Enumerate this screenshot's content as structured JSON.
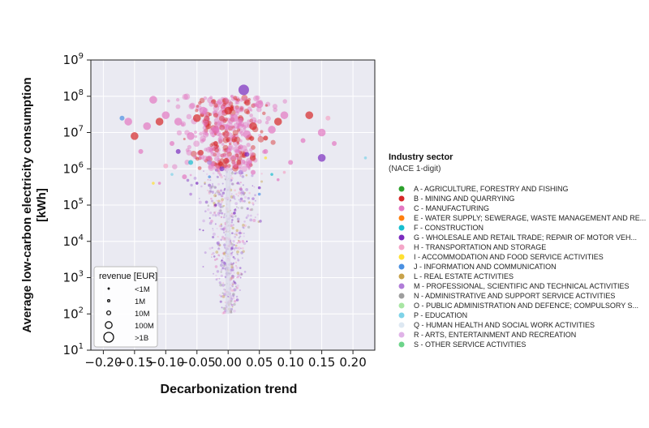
{
  "chart_data": {
    "type": "scatter",
    "xlabel": "Decarbonization trend",
    "ylabel": "Average low-carbon electricity consumption",
    "ylabel_unit": "[kWh]",
    "xlim": [
      -0.22,
      0.235
    ],
    "ylim": [
      10,
      1000000000
    ],
    "yscale": "log",
    "grid": true,
    "x_ticks": [
      -0.2,
      -0.15,
      -0.1,
      -0.05,
      0.0,
      0.05,
      0.1,
      0.15,
      0.2
    ],
    "x_tick_labels": [
      "−0.20",
      "−0.15",
      "−0.10",
      "−0.05",
      "0.00",
      "0.05",
      "0.10",
      "0.15",
      "0.20"
    ],
    "y_ticks": [
      10,
      100,
      1000,
      10000,
      100000,
      1000000,
      10000000,
      100000000,
      1000000000
    ],
    "y_tick_labels": [
      {
        "base": "10",
        "exp": "1"
      },
      {
        "base": "10",
        "exp": "2"
      },
      {
        "base": "10",
        "exp": "3"
      },
      {
        "base": "10",
        "exp": "4"
      },
      {
        "base": "10",
        "exp": "5"
      },
      {
        "base": "10",
        "exp": "6"
      },
      {
        "base": "10",
        "exp": "7"
      },
      {
        "base": "10",
        "exp": "8"
      },
      {
        "base": "10",
        "exp": "9"
      }
    ],
    "size_legend": {
      "title": "revenue [EUR]",
      "placement": "bottom-left",
      "entries": [
        {
          "label": "<1M",
          "revenue_eur": 1000000
        },
        {
          "label": "1M",
          "revenue_eur": 1000000
        },
        {
          "label": "10M",
          "revenue_eur": 10000000
        },
        {
          "label": "100M",
          "revenue_eur": 100000000
        },
        {
          "label": ">1B",
          "revenue_eur": 1000000000
        }
      ]
    },
    "color_legend": {
      "title": "Industry sector",
      "subtitle": "(NACE 1-digit)",
      "placement": "right",
      "entries": [
        {
          "code": "A",
          "label": "A - AGRICULTURE, FORESTRY AND FISHING",
          "color": "#2ca02c"
        },
        {
          "code": "B",
          "label": "B - MINING AND QUARRYING",
          "color": "#d62728"
        },
        {
          "code": "C",
          "label": "C - MANUFACTURING",
          "color": "#e377c2"
        },
        {
          "code": "E",
          "label": "E - WATER SUPPLY; SEWERAGE, WASTE MANAGEMENT AND RE...",
          "color": "#ff7f0e"
        },
        {
          "code": "F",
          "label": "F - CONSTRUCTION",
          "color": "#17becf"
        },
        {
          "code": "G",
          "label": "G - WHOLESALE AND RETAIL TRADE; REPAIR OF MOTOR VEH...",
          "color": "#7b2cbf"
        },
        {
          "code": "H",
          "label": "H - TRANSPORTATION AND STORAGE",
          "color": "#f4a6c8"
        },
        {
          "code": "I",
          "label": "I - ACCOMMODATION AND FOOD SERVICE ACTIVITIES",
          "color": "#ffe033"
        },
        {
          "code": "J",
          "label": "J - INFORMATION AND COMMUNICATION",
          "color": "#4a90e2"
        },
        {
          "code": "L",
          "label": "L - REAL ESTATE ACTIVITIES",
          "color": "#c8a24a"
        },
        {
          "code": "M",
          "label": "M - PROFESSIONAL, SCIENTIFIC AND TECHNICAL ACTIVITIES",
          "color": "#b07cd8"
        },
        {
          "code": "N",
          "label": "N - ADMINISTRATIVE AND SUPPORT SERVICE ACTIVITIES",
          "color": "#9e9e9e"
        },
        {
          "code": "O",
          "label": "O - PUBLIC ADMINISTRATION AND DEFENCE; COMPULSORY S...",
          "color": "#a8e6a3"
        },
        {
          "code": "P",
          "label": "P - EDUCATION",
          "color": "#7fd3e8"
        },
        {
          "code": "Q",
          "label": "Q - HUMAN HEALTH AND SOCIAL WORK ACTIVITIES",
          "color": "#dde8f2"
        },
        {
          "code": "R",
          "label": "R - ARTS, ENTERTAINMENT AND RECREATION",
          "color": "#e0b3e8"
        },
        {
          "code": "S",
          "label": "S - OTHER SERVICE ACTIVITIES",
          "color": "#6dd48a"
        }
      ]
    },
    "series": [
      {
        "sector": "C",
        "points": [
          {
            "x": -0.16,
            "y": 20000000,
            "rev": "100M"
          },
          {
            "x": -0.13,
            "y": 15000000,
            "rev": "100M"
          },
          {
            "x": -0.12,
            "y": 80000000,
            "rev": "100M"
          },
          {
            "x": -0.1,
            "y": 30000000,
            "rev": "100M"
          },
          {
            "x": -0.08,
            "y": 20000000,
            "rev": "100M"
          },
          {
            "x": -0.06,
            "y": 8000000,
            "rev": "100M"
          },
          {
            "x": -0.04,
            "y": 40000000,
            "rev": "100M"
          },
          {
            "x": -0.02,
            "y": 12000000,
            "rev": "100M"
          },
          {
            "x": 0.01,
            "y": 25000000,
            "rev": "100M"
          },
          {
            "x": 0.03,
            "y": 9000000,
            "rev": "100M"
          },
          {
            "x": 0.05,
            "y": 60000000,
            "rev": "100M"
          },
          {
            "x": 0.07,
            "y": 12000000,
            "rev": "100M"
          },
          {
            "x": 0.09,
            "y": 30000000,
            "rev": "100M"
          },
          {
            "x": 0.12,
            "y": 6000000,
            "rev": "10M"
          },
          {
            "x": 0.15,
            "y": 10000000,
            "rev": "100M"
          },
          {
            "x": 0.17,
            "y": 5000000,
            "rev": "10M"
          },
          {
            "x": -0.14,
            "y": 3000000,
            "rev": "10M"
          },
          {
            "x": -0.09,
            "y": 5000000,
            "rev": "10M"
          },
          {
            "x": -0.03,
            "y": 2000000,
            "rev": "10M"
          },
          {
            "x": 0.02,
            "y": 4000000,
            "rev": "10M"
          },
          {
            "x": 0.06,
            "y": 3000000,
            "rev": "10M"
          },
          {
            "x": 0.1,
            "y": 1500000,
            "rev": "10M"
          },
          {
            "x": -0.07,
            "y": 600000,
            "rev": "10M"
          },
          {
            "x": 0.04,
            "y": 800000,
            "rev": "10M"
          },
          {
            "x": -0.11,
            "y": 400000,
            "rev": "1M"
          },
          {
            "x": 0.08,
            "y": 500000,
            "rev": "1M"
          }
        ]
      },
      {
        "sector": "B",
        "points": [
          {
            "x": -0.15,
            "y": 8000000,
            "rev": "100M"
          },
          {
            "x": -0.11,
            "y": 20000000,
            "rev": "100M"
          },
          {
            "x": -0.05,
            "y": 25000000,
            "rev": "100M"
          },
          {
            "x": 0.0,
            "y": 40000000,
            "rev": "100M"
          },
          {
            "x": 0.04,
            "y": 15000000,
            "rev": "100M"
          },
          {
            "x": 0.08,
            "y": 20000000,
            "rev": "100M"
          },
          {
            "x": 0.13,
            "y": 30000000,
            "rev": "100M"
          },
          {
            "x": -0.02,
            "y": 5000000,
            "rev": "10M"
          },
          {
            "x": 0.06,
            "y": 7000000,
            "rev": "10M"
          }
        ]
      },
      {
        "sector": "G",
        "points": [
          {
            "x": 0.025,
            "y": 150000000,
            "rev": ">1B"
          },
          {
            "x": 0.15,
            "y": 2000000,
            "rev": "100M"
          },
          {
            "x": -0.08,
            "y": 3000000,
            "rev": "10M"
          },
          {
            "x": -0.01,
            "y": 1000000,
            "rev": "10M"
          },
          {
            "x": 0.03,
            "y": 2500000,
            "rev": "10M"
          },
          {
            "x": -0.05,
            "y": 400000,
            "rev": "1M"
          },
          {
            "x": 0.05,
            "y": 300000,
            "rev": "1M"
          },
          {
            "x": -0.02,
            "y": 100000,
            "rev": "1M"
          },
          {
            "x": 0.01,
            "y": 60000,
            "rev": "1M"
          },
          {
            "x": -0.04,
            "y": 20000,
            "rev": "<1M"
          },
          {
            "x": 0.03,
            "y": 10000,
            "rev": "<1M"
          },
          {
            "x": -0.01,
            "y": 3000,
            "rev": "<1M"
          }
        ]
      },
      {
        "sector": "M",
        "points": [
          {
            "x": -0.03,
            "y": 1500000,
            "rev": "10M"
          },
          {
            "x": 0.02,
            "y": 800000,
            "rev": "10M"
          },
          {
            "x": -0.06,
            "y": 200000,
            "rev": "1M"
          },
          {
            "x": 0.04,
            "y": 150000,
            "rev": "1M"
          },
          {
            "x": -0.02,
            "y": 30000,
            "rev": "<1M"
          },
          {
            "x": 0.01,
            "y": 8000,
            "rev": "<1M"
          },
          {
            "x": -0.04,
            "y": 2000,
            "rev": "<1M"
          },
          {
            "x": 0.02,
            "y": 1000,
            "rev": "<1M"
          },
          {
            "x": 0.0,
            "y": 300,
            "rev": "<1M"
          },
          {
            "x": -0.01,
            "y": 150,
            "rev": "<1M"
          }
        ]
      },
      {
        "sector": "J",
        "points": [
          {
            "x": -0.17,
            "y": 25000000,
            "rev": "10M"
          },
          {
            "x": -0.03,
            "y": 600000,
            "rev": "1M"
          },
          {
            "x": 0.05,
            "y": 200000,
            "rev": "1M"
          }
        ]
      },
      {
        "sector": "P",
        "points": [
          {
            "x": 0.22,
            "y": 2000000,
            "rev": "1M"
          },
          {
            "x": -0.09,
            "y": 700000,
            "rev": "1M"
          }
        ]
      },
      {
        "sector": "H",
        "points": [
          {
            "x": 0.16,
            "y": 25000000,
            "rev": "10M"
          },
          {
            "x": -0.1,
            "y": 1200000,
            "rev": "10M"
          },
          {
            "x": 0.09,
            "y": 800000,
            "rev": "1M"
          }
        ]
      },
      {
        "sector": "I",
        "points": [
          {
            "x": 0.06,
            "y": 2000000,
            "rev": "1M"
          },
          {
            "x": -0.12,
            "y": 400000,
            "rev": "1M"
          }
        ]
      },
      {
        "sector": "F",
        "points": [
          {
            "x": -0.06,
            "y": 1500000,
            "rev": "10M"
          },
          {
            "x": 0.07,
            "y": 700000,
            "rev": "1M"
          }
        ]
      },
      {
        "sector": "Q",
        "points": [
          {
            "x": 0.0,
            "y": 15000,
            "rev": "10M"
          },
          {
            "x": 0.0,
            "y": 5000,
            "rev": "1M"
          }
        ]
      }
    ]
  }
}
